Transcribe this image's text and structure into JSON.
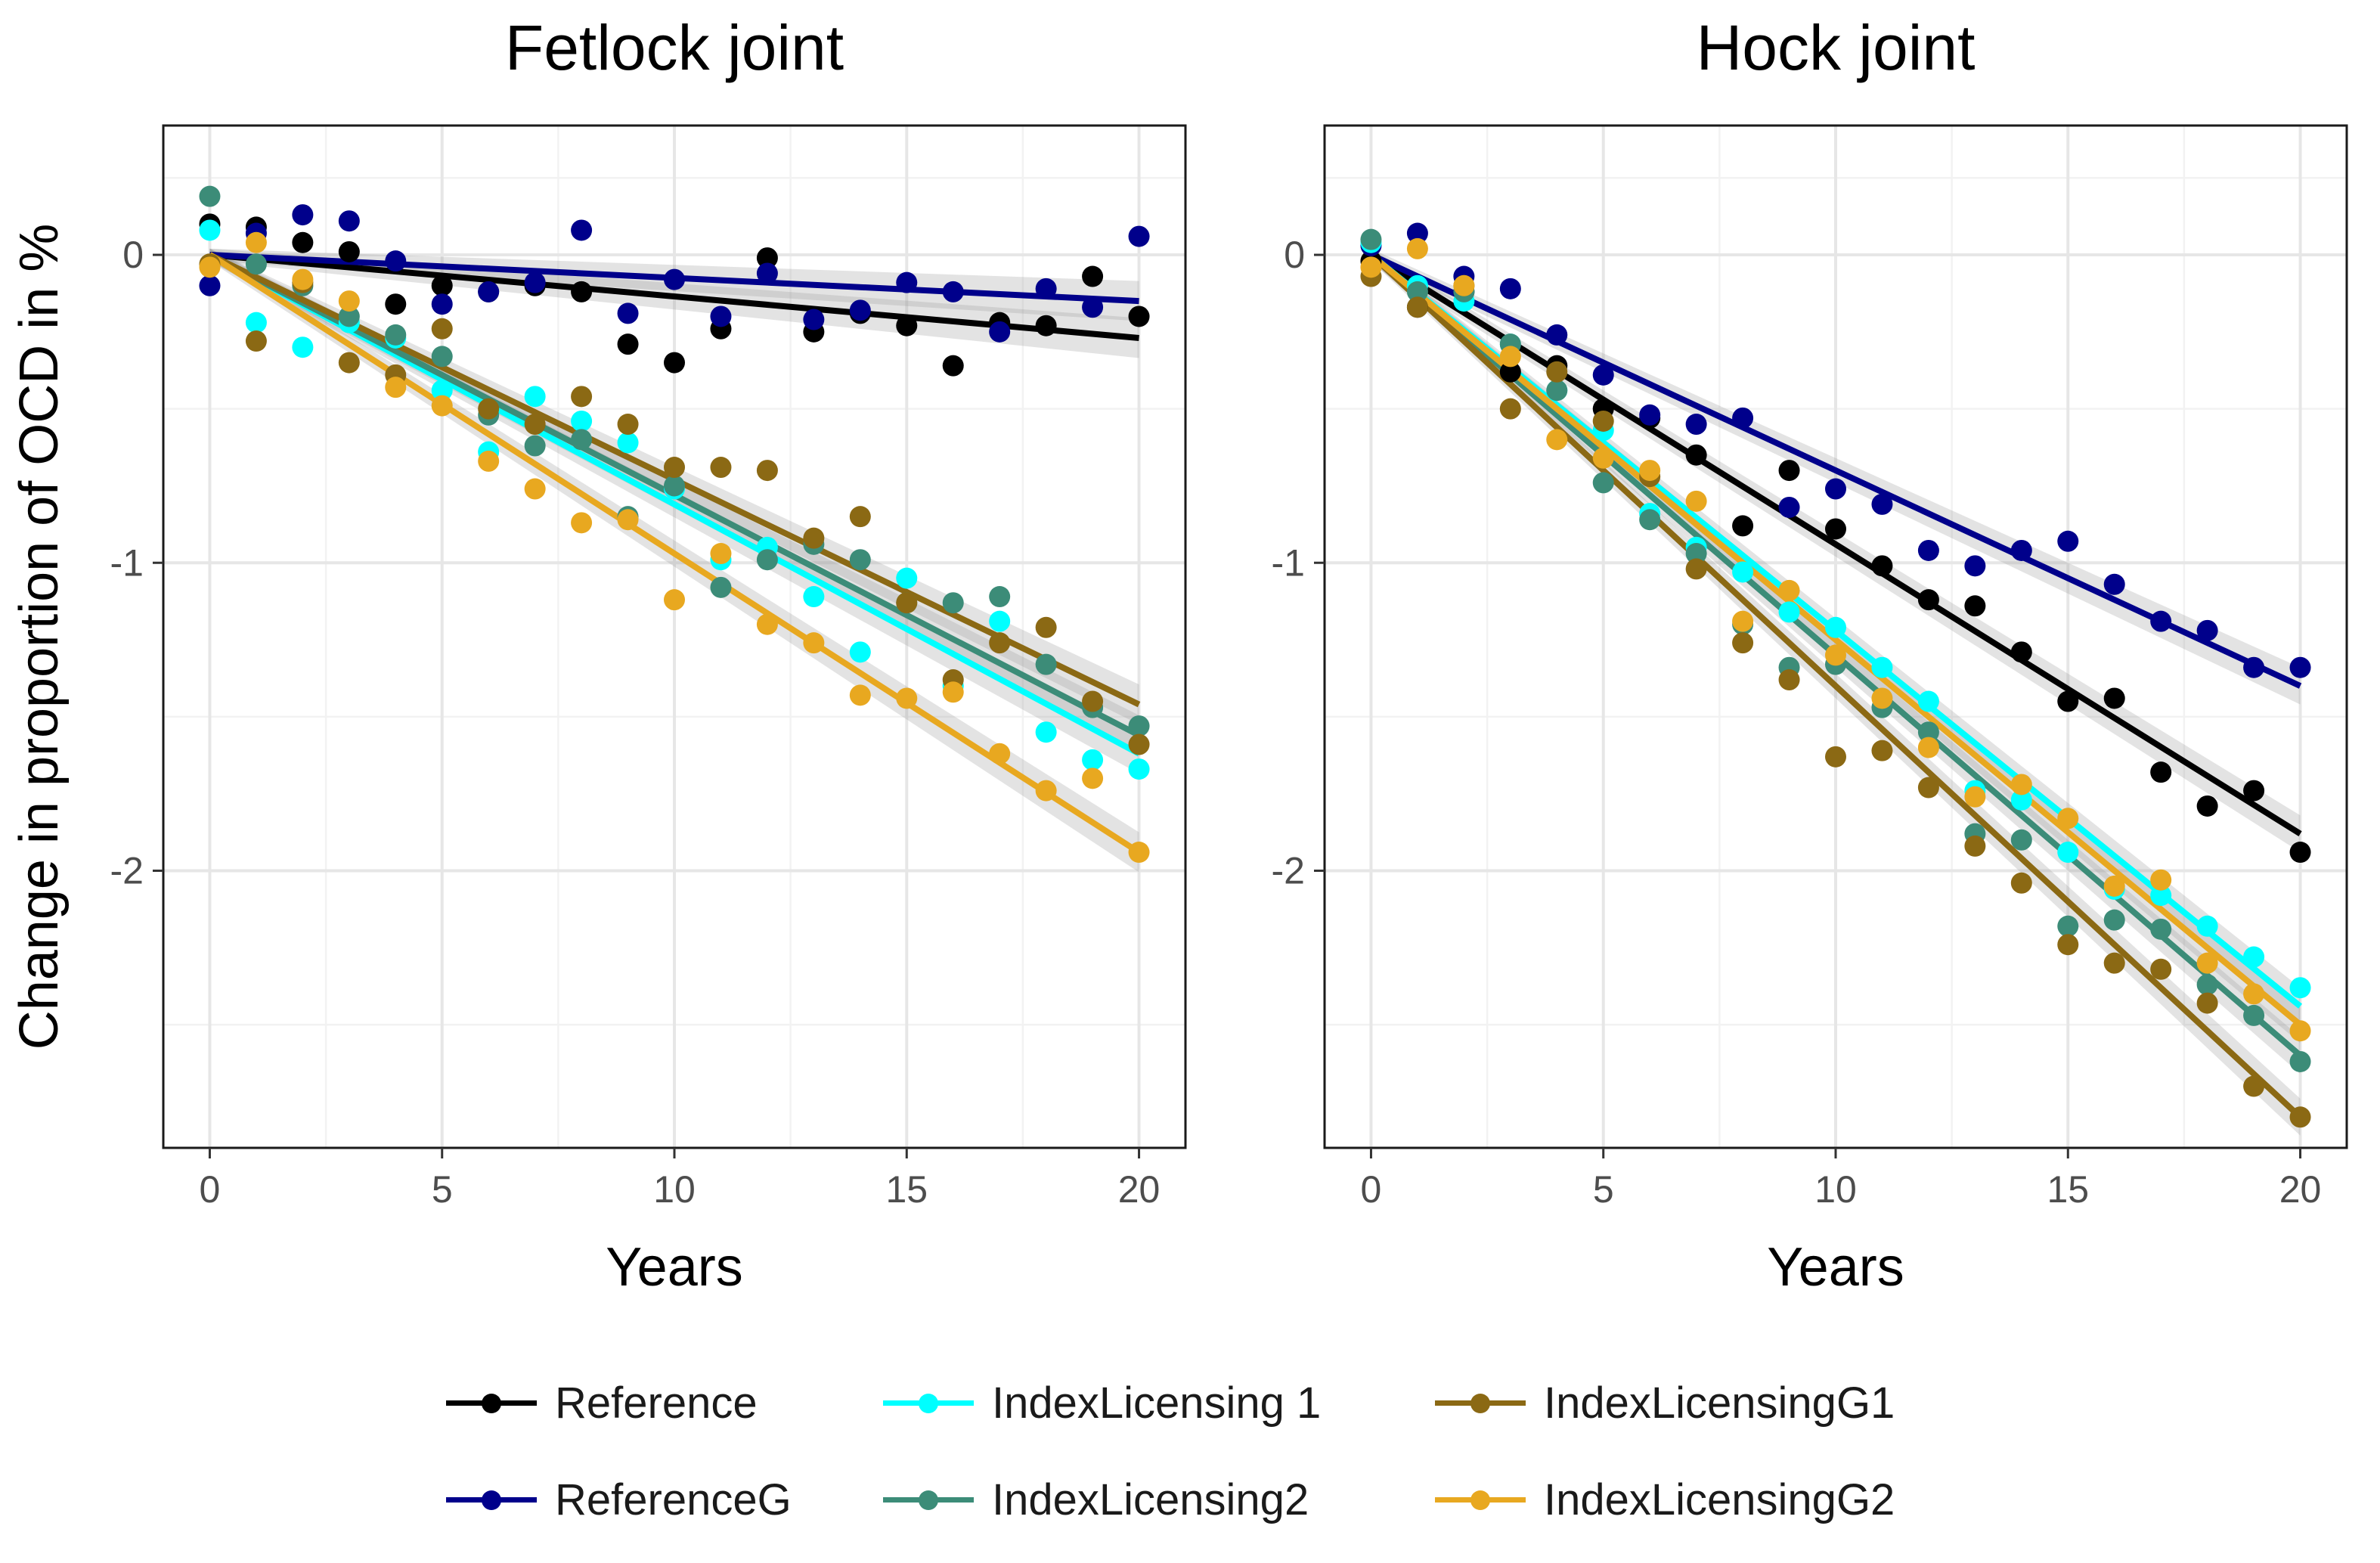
{
  "chart_data": [
    {
      "type": "scatter",
      "title": "Fetlock joint",
      "xlabel": "Years",
      "ylabel": "Change in proportion of OCD in %",
      "xlim": [
        -1,
        21
      ],
      "ylim": [
        -2.9,
        0.42
      ],
      "xticks": [
        0,
        5,
        10,
        15,
        20
      ],
      "yticks": [
        0,
        -1,
        -2
      ],
      "ytick_labels": [
        "0",
        "-1",
        "-2"
      ],
      "grid": true,
      "x": [
        0,
        1,
        2,
        3,
        4,
        5,
        6,
        7,
        8,
        9,
        10,
        11,
        12,
        13,
        14,
        15,
        16,
        17,
        18,
        19,
        20
      ],
      "series": [
        {
          "name": "Reference",
          "color": "#000000",
          "slope": -0.0135,
          "points": [
            0.1,
            0.09,
            0.04,
            0.01,
            -0.16,
            -0.1,
            -0.12,
            -0.1,
            -0.12,
            -0.29,
            -0.35,
            -0.24,
            -0.01,
            -0.25,
            -0.19,
            -0.23,
            -0.36,
            -0.22,
            -0.23,
            -0.07,
            -0.2
          ]
        },
        {
          "name": "ReferenceG",
          "color": "#00008B",
          "slope": -0.0075,
          "points": [
            -0.1,
            0.07,
            0.13,
            0.11,
            -0.02,
            -0.16,
            -0.12,
            -0.09,
            0.08,
            -0.19,
            -0.08,
            -0.2,
            -0.06,
            -0.21,
            -0.18,
            -0.09,
            -0.12,
            -0.25,
            -0.11,
            -0.17,
            0.06
          ]
        },
        {
          "name": "IndexLicensing 1",
          "color": "#00FFFF",
          "slope": -0.081,
          "points": [
            0.08,
            -0.22,
            -0.3,
            -0.22,
            -0.27,
            -0.44,
            -0.64,
            -0.46,
            -0.54,
            -0.61,
            -0.76,
            -0.99,
            -0.95,
            -1.11,
            -1.29,
            -1.05,
            -1.4,
            -1.19,
            -1.55,
            -1.64,
            -1.67
          ]
        },
        {
          "name": "IndexLicensing2",
          "color": "#3C8C78",
          "slope": -0.078,
          "points": [
            0.19,
            -0.03,
            -0.1,
            -0.2,
            -0.26,
            -0.33,
            -0.52,
            -0.62,
            -0.6,
            -0.85,
            -0.75,
            -1.08,
            -0.99,
            -0.94,
            -0.99,
            -1.13,
            -1.13,
            -1.11,
            -1.33,
            -1.47,
            -1.53
          ]
        },
        {
          "name": "IndexLicensingG1",
          "color": "#8B6914",
          "slope": -0.073,
          "points": [
            -0.03,
            -0.28,
            -0.09,
            -0.35,
            -0.39,
            -0.24,
            -0.5,
            -0.55,
            -0.46,
            -0.55,
            -0.69,
            -0.69,
            -0.7,
            -0.92,
            -0.85,
            -1.13,
            -1.38,
            -1.26,
            -1.21,
            -1.45,
            -1.59
          ]
        },
        {
          "name": "IndexLicensingG2",
          "color": "#E8A820",
          "slope": -0.097,
          "points": [
            -0.04,
            0.04,
            -0.08,
            -0.15,
            -0.43,
            -0.49,
            -0.67,
            -0.76,
            -0.87,
            -0.86,
            -1.12,
            -0.97,
            -1.2,
            -1.26,
            -1.43,
            -1.44,
            -1.42,
            -1.62,
            -1.74,
            -1.7,
            -1.94
          ]
        }
      ]
    },
    {
      "type": "scatter",
      "title": "Hock joint",
      "xlabel": "Years",
      "ylabel": "",
      "xlim": [
        -1,
        21
      ],
      "ylim": [
        -2.9,
        0.42
      ],
      "xticks": [
        0,
        5,
        10,
        15,
        20
      ],
      "yticks": [
        0,
        -1,
        -2
      ],
      "ytick_labels": [
        "0",
        "-1",
        "-2"
      ],
      "grid": true,
      "x": [
        0,
        1,
        2,
        3,
        4,
        5,
        6,
        7,
        8,
        9,
        10,
        11,
        12,
        13,
        14,
        15,
        16,
        17,
        18,
        19,
        20
      ],
      "series": [
        {
          "name": "Reference",
          "color": "#000000",
          "slope": -0.094,
          "points": [
            -0.02,
            -0.17,
            -0.12,
            -0.38,
            -0.36,
            -0.5,
            -0.53,
            -0.65,
            -0.88,
            -0.7,
            -0.89,
            -1.01,
            -1.12,
            -1.14,
            -1.29,
            -1.45,
            -1.44,
            -1.68,
            -1.79,
            -1.74,
            -1.94
          ]
        },
        {
          "name": "ReferenceG",
          "color": "#00008B",
          "slope": -0.07,
          "points": [
            0.03,
            0.07,
            -0.07,
            -0.11,
            -0.26,
            -0.39,
            -0.52,
            -0.55,
            -0.53,
            -0.82,
            -0.76,
            -0.81,
            -0.96,
            -1.01,
            -0.96,
            -0.93,
            -1.07,
            -1.19,
            -1.22,
            -1.34,
            -1.34
          ]
        },
        {
          "name": "IndexLicensing 1",
          "color": "#00FFFF",
          "slope": -0.122,
          "points": [
            0.04,
            -0.1,
            -0.15,
            -0.29,
            -0.44,
            -0.57,
            -0.84,
            -0.95,
            -1.03,
            -1.16,
            -1.21,
            -1.34,
            -1.45,
            -1.74,
            -1.77,
            -1.94,
            -2.06,
            -2.08,
            -2.18,
            -2.28,
            -2.38
          ]
        },
        {
          "name": "IndexLicensing2",
          "color": "#3C8C78",
          "slope": -0.13,
          "points": [
            0.05,
            -0.12,
            -0.12,
            -0.29,
            -0.44,
            -0.74,
            -0.86,
            -0.97,
            -1.2,
            -1.34,
            -1.33,
            -1.47,
            -1.55,
            -1.88,
            -1.9,
            -2.18,
            -2.16,
            -2.19,
            -2.37,
            -2.47,
            -2.62
          ]
        },
        {
          "name": "IndexLicensingG1",
          "color": "#8B6914",
          "slope": -0.14,
          "points": [
            -0.07,
            -0.17,
            -0.1,
            -0.5,
            -0.38,
            -0.54,
            -0.72,
            -1.02,
            -1.26,
            -1.38,
            -1.63,
            -1.61,
            -1.73,
            -1.92,
            -2.04,
            -2.24,
            -2.3,
            -2.32,
            -2.43,
            -2.7,
            -2.8
          ]
        },
        {
          "name": "IndexLicensingG2",
          "color": "#E8A820",
          "slope": -0.125,
          "points": [
            -0.04,
            0.02,
            -0.1,
            -0.33,
            -0.6,
            -0.66,
            -0.7,
            -0.8,
            -1.19,
            -1.09,
            -1.3,
            -1.44,
            -1.6,
            -1.76,
            -1.72,
            -1.83,
            -2.05,
            -2.03,
            -2.3,
            -2.4,
            -2.52
          ]
        }
      ]
    }
  ],
  "legend": {
    "items": [
      {
        "label": "Reference",
        "color": "#000000"
      },
      {
        "label": "ReferenceG",
        "color": "#00008B"
      },
      {
        "label": "IndexLicensing 1",
        "color": "#00FFFF"
      },
      {
        "label": "IndexLicensing2",
        "color": "#3C8C78"
      },
      {
        "label": "IndexLicensingG1",
        "color": "#8B6914"
      },
      {
        "label": "IndexLicensingG2",
        "color": "#E8A820"
      }
    ]
  }
}
